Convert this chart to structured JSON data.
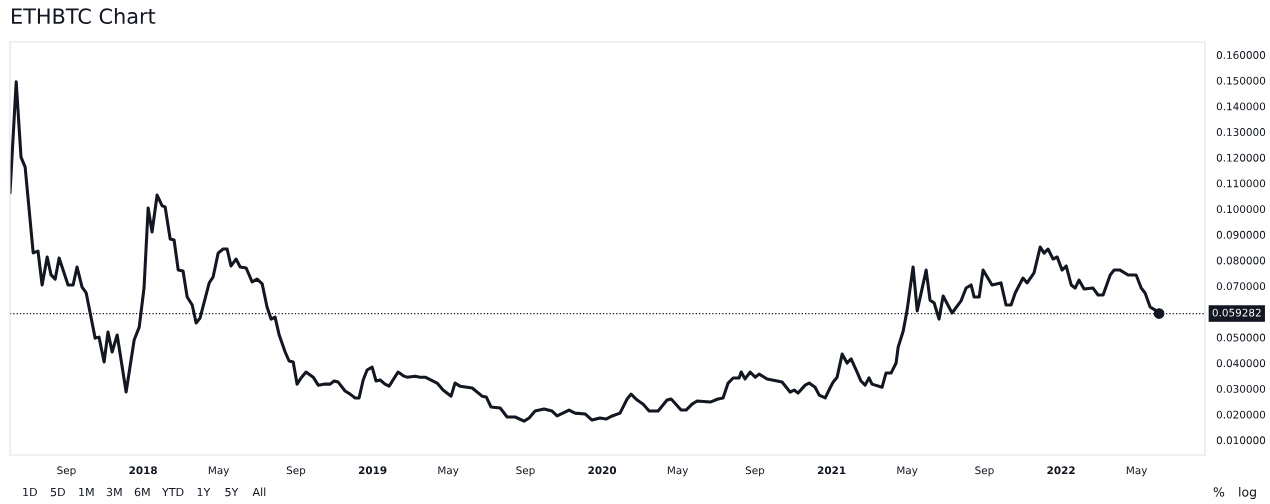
{
  "chart_data": {
    "type": "line",
    "title": "ETHBTC Chart",
    "x": [
      2017.42,
      2017.447,
      2017.468,
      2017.486,
      2017.521,
      2017.542,
      2017.56,
      2017.582,
      2017.599,
      2017.617,
      2017.634,
      2017.673,
      2017.695,
      2017.712,
      2017.734,
      2017.752,
      2017.791,
      2017.808,
      2017.83,
      2017.847,
      2017.865,
      2017.887,
      2017.926,
      2017.961,
      2017.983,
      2018.004,
      2018.022,
      2018.039,
      2018.061,
      2018.083,
      2018.096,
      2018.118,
      2018.135,
      2018.153,
      2018.174,
      2018.192,
      2018.214,
      2018.231,
      2018.248,
      2018.288,
      2018.305,
      2018.327,
      2018.349,
      2018.366,
      2018.383,
      2018.405,
      2018.423,
      2018.449,
      2018.475,
      2018.497,
      2018.519,
      2018.54,
      2018.558,
      2018.575,
      2018.593,
      2018.619,
      2018.636,
      2018.654,
      2018.671,
      2018.688,
      2018.71,
      2018.741,
      2018.763,
      2018.793,
      2018.815,
      2018.832,
      2018.85,
      2018.88,
      2018.902,
      2018.924,
      2018.941,
      2018.959,
      2018.976,
      2018.998,
      2019.015,
      2019.033,
      2019.054,
      2019.072,
      2019.111,
      2019.137,
      2019.15,
      2019.185,
      2019.207,
      2019.229,
      2019.281,
      2019.307,
      2019.342,
      2019.359,
      2019.381,
      2019.434,
      2019.477,
      2019.495,
      2019.516,
      2019.556,
      2019.586,
      2019.621,
      2019.66,
      2019.682,
      2019.708,
      2019.747,
      2019.782,
      2019.804,
      2019.856,
      2019.882,
      2019.926,
      2019.956,
      2019.991,
      2020.017,
      2020.044,
      2020.078,
      2020.109,
      2020.126,
      2020.153,
      2020.179,
      2020.205,
      2020.244,
      2020.283,
      2020.301,
      2020.344,
      2020.366,
      2020.392,
      2020.414,
      2020.471,
      2020.505,
      2020.527,
      2020.549,
      2020.571,
      2020.597,
      2020.606,
      2020.623,
      2020.645,
      2020.667,
      2020.684,
      2020.719,
      2020.763,
      2020.784,
      2020.819,
      2020.837,
      2020.854,
      2020.885,
      2020.902,
      2020.928,
      2020.946,
      2020.972,
      2020.993,
      2021.007,
      2021.024,
      2021.046,
      2021.067,
      2021.085,
      2021.111,
      2021.128,
      2021.146,
      2021.163,
      2021.176,
      2021.22,
      2021.237,
      2021.259,
      2021.281,
      2021.29,
      2021.312,
      2021.329,
      2021.355,
      2021.373,
      2021.412,
      2021.429,
      2021.447,
      2021.468,
      2021.486,
      2021.525,
      2021.564,
      2021.586,
      2021.608,
      2021.621,
      2021.643,
      2021.66,
      2021.699,
      2021.738,
      2021.76,
      2021.782,
      2021.8,
      2021.834,
      2021.852,
      2021.882,
      2021.909,
      2021.926,
      2021.943,
      2021.965,
      2021.983,
      2022.004,
      2022.022,
      2022.044,
      2022.061,
      2022.078,
      2022.1,
      2022.139,
      2022.161,
      2022.183,
      2022.214,
      2022.231,
      2022.257,
      2022.292,
      2022.327,
      2022.349,
      2022.366,
      2022.388,
      2022.41,
      2022.427
    ],
    "series": [
      {
        "color": "#131722",
        "values": [
          0.1062,
          0.1495,
          0.1202,
          0.1163,
          0.0829,
          0.0836,
          0.0704,
          0.0813,
          0.0743,
          0.0727,
          0.0809,
          0.0704,
          0.0704,
          0.0774,
          0.0696,
          0.0673,
          0.0497,
          0.0501,
          0.0404,
          0.0521,
          0.0443,
          0.0509,
          0.0287,
          0.049,
          0.054,
          0.0692,
          0.1004,
          0.091,
          0.1054,
          0.1012,
          0.1008,
          0.0883,
          0.0879,
          0.0762,
          0.0758,
          0.0657,
          0.0626,
          0.0556,
          0.0575,
          0.0712,
          0.0735,
          0.0828,
          0.0844,
          0.0844,
          0.0778,
          0.0805,
          0.0774,
          0.077,
          0.0716,
          0.0727,
          0.0708,
          0.0618,
          0.0571,
          0.0579,
          0.0509,
          0.0443,
          0.0408,
          0.0404,
          0.0318,
          0.0342,
          0.0365,
          0.0345,
          0.0314,
          0.0318,
          0.0318,
          0.033,
          0.0326,
          0.0291,
          0.0279,
          0.0264,
          0.0264,
          0.0334,
          0.0373,
          0.0384,
          0.033,
          0.0334,
          0.0318,
          0.031,
          0.0365,
          0.0349,
          0.0345,
          0.0349,
          0.0345,
          0.0345,
          0.0322,
          0.0295,
          0.0271,
          0.0322,
          0.031,
          0.0303,
          0.0271,
          0.0268,
          0.0229,
          0.0225,
          0.019,
          0.019,
          0.0174,
          0.0186,
          0.0213,
          0.0221,
          0.0213,
          0.0194,
          0.0217,
          0.0205,
          0.0202,
          0.0178,
          0.0186,
          0.0182,
          0.0194,
          0.0205,
          0.026,
          0.0279,
          0.0256,
          0.024,
          0.0213,
          0.0213,
          0.0256,
          0.026,
          0.0217,
          0.0217,
          0.024,
          0.0252,
          0.0248,
          0.026,
          0.0264,
          0.0322,
          0.0342,
          0.0342,
          0.0365,
          0.0338,
          0.0365,
          0.0345,
          0.0357,
          0.0338,
          0.033,
          0.0326,
          0.0287,
          0.0295,
          0.0283,
          0.0314,
          0.0322,
          0.0306,
          0.0275,
          0.0264,
          0.0303,
          0.0326,
          0.0345,
          0.0435,
          0.04,
          0.0416,
          0.0365,
          0.033,
          0.0314,
          0.0342,
          0.0318,
          0.0306,
          0.0361,
          0.0361,
          0.04,
          0.0462,
          0.0525,
          0.0606,
          0.0774,
          0.0603,
          0.0762,
          0.0645,
          0.0634,
          0.0571,
          0.0661,
          0.0595,
          0.0642,
          0.0692,
          0.0704,
          0.0657,
          0.0657,
          0.0762,
          0.0704,
          0.0712,
          0.0626,
          0.0626,
          0.0673,
          0.0731,
          0.0712,
          0.0751,
          0.0852,
          0.0828,
          0.0844,
          0.0805,
          0.0813,
          0.0762,
          0.0778,
          0.0704,
          0.0692,
          0.0723,
          0.0688,
          0.0692,
          0.0665,
          0.0665,
          0.0743,
          0.0762,
          0.0762,
          0.0743,
          0.0743,
          0.0692,
          0.0673,
          0.0618,
          0.0606,
          0.059282
        ]
      },
      {
        "type": "scatter",
        "color": "#131722",
        "marker": "circle",
        "x": [
          2022.427
        ],
        "values": [
          0.059282
        ]
      }
    ],
    "xlim": [
      2017.42,
      2022.627
    ],
    "xticks": [
      {
        "value": 2017.666,
        "label": "Sep"
      },
      {
        "value": 2018,
        "label": "2018"
      },
      {
        "value": 2018.329,
        "label": "May"
      },
      {
        "value": 2018.666,
        "label": "Sep"
      },
      {
        "value": 2019,
        "label": "2019"
      },
      {
        "value": 2019.329,
        "label": "May"
      },
      {
        "value": 2019.666,
        "label": "Sep"
      },
      {
        "value": 2020,
        "label": "2020"
      },
      {
        "value": 2020.329,
        "label": "May"
      },
      {
        "value": 2020.666,
        "label": "Sep"
      },
      {
        "value": 2021,
        "label": "2021"
      },
      {
        "value": 2021.329,
        "label": "May"
      },
      {
        "value": 2021.666,
        "label": "Sep"
      },
      {
        "value": 2022,
        "label": "2022"
      },
      {
        "value": 2022.329,
        "label": "May"
      }
    ],
    "ylim": [
      0.0042,
      0.165
    ],
    "yticks": [
      {
        "value": 0.01,
        "label": "0.010000"
      },
      {
        "value": 0.02,
        "label": "0.020000"
      },
      {
        "value": 0.03,
        "label": "0.030000"
      },
      {
        "value": 0.04,
        "label": "0.040000"
      },
      {
        "value": 0.05,
        "label": "0.050000"
      },
      {
        "value": 0.07,
        "label": "0.070000"
      },
      {
        "value": 0.08,
        "label": "0.080000"
      },
      {
        "value": 0.09,
        "label": "0.090000"
      },
      {
        "value": 0.1,
        "label": "0.100000"
      },
      {
        "value": 0.11,
        "label": "0.110000"
      },
      {
        "value": 0.12,
        "label": "0.120000"
      },
      {
        "value": 0.13,
        "label": "0.130000"
      },
      {
        "value": 0.14,
        "label": "0.140000"
      },
      {
        "value": 0.15,
        "label": "0.150000"
      },
      {
        "value": 0.16,
        "label": "0.160000"
      }
    ],
    "ref_lines": [
      {
        "axis": "y",
        "value": 0.059282,
        "label": "0.059282",
        "color": "#131722",
        "line_style": "dotted"
      }
    ],
    "grid": false,
    "legend": false,
    "line_style": "solid",
    "marker": "none",
    "annotations": [
      "1D",
      "5D",
      "1M",
      "3M",
      "6M",
      "YTD",
      "1Y",
      "5Y",
      "All",
      "%",
      "log"
    ]
  }
}
